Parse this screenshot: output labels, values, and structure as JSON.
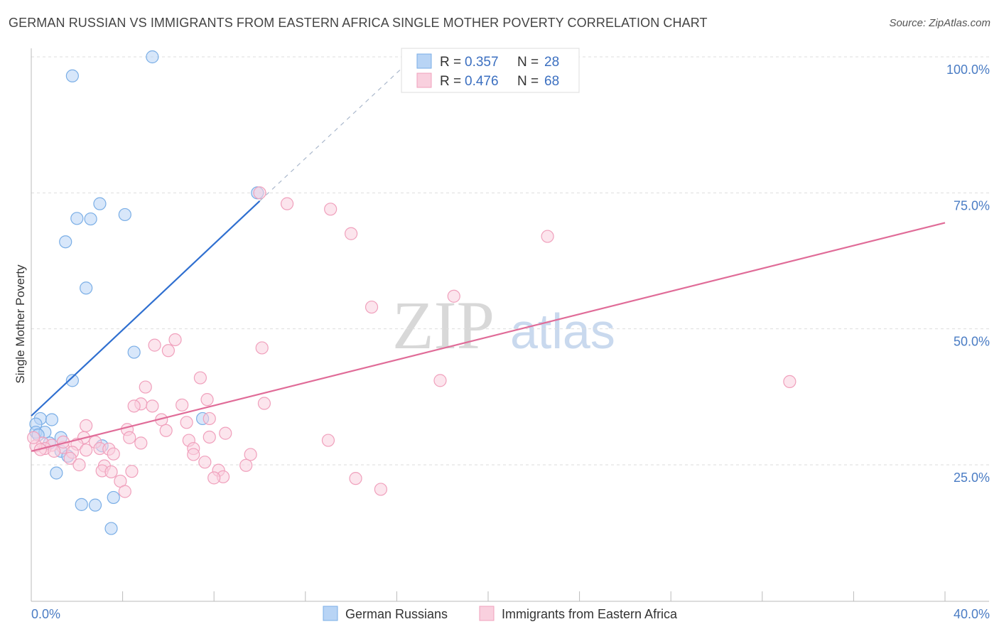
{
  "title": "GERMAN RUSSIAN VS IMMIGRANTS FROM EASTERN AFRICA SINGLE MOTHER POVERTY CORRELATION CHART",
  "source": "Source: ZipAtlas.com",
  "watermark": {
    "zip": "ZIP",
    "atlas": "atlas"
  },
  "chart_data": {
    "type": "scatter",
    "title": "GERMAN RUSSIAN VS IMMIGRANTS FROM EASTERN AFRICA SINGLE MOTHER POVERTY CORRELATION CHART",
    "xlabel": "",
    "ylabel": "Single Mother Poverty",
    "xlim": [
      0,
      40
    ],
    "ylim": [
      3,
      103
    ],
    "x_tick_labels": [
      {
        "value": 0,
        "label": "0.0%"
      },
      {
        "value": 40,
        "label": "40.0%"
      }
    ],
    "y_tick_labels": [
      {
        "value": 25,
        "label": "25.0%"
      },
      {
        "value": 50,
        "label": "50.0%"
      },
      {
        "value": 75,
        "label": "75.0%"
      },
      {
        "value": 100,
        "label": "100.0%"
      }
    ],
    "legend": [
      {
        "series": "German Russians",
        "r_label": "R =",
        "r": "0.357",
        "n_label": "N =",
        "n": "28"
      },
      {
        "series": "Immigrants from Eastern Africa",
        "r_label": "R =",
        "r": "0.476",
        "n_label": "N =",
        "n": "68"
      }
    ],
    "series": [
      {
        "name": "German Russians",
        "color": "#7aaee6",
        "fill": "#b8d4f5",
        "trend_color": "#2f6fd0",
        "trend": {
          "x0": 0,
          "y0": 34,
          "x1": 10,
          "y1": 73.5,
          "dash_to_x": 16.5,
          "dash_to_y": 99
        },
        "points": [
          [
            5.3,
            100
          ],
          [
            1.8,
            96.5
          ],
          [
            3.0,
            73
          ],
          [
            4.1,
            71
          ],
          [
            2.0,
            70.3
          ],
          [
            2.6,
            70.2
          ],
          [
            1.5,
            66
          ],
          [
            2.4,
            57.5
          ],
          [
            9.9,
            75
          ],
          [
            4.5,
            45.7
          ],
          [
            1.8,
            40.5
          ],
          [
            7.5,
            33.5
          ],
          [
            0.4,
            33.5
          ],
          [
            0.9,
            33.3
          ],
          [
            0.2,
            32.5
          ],
          [
            0.2,
            31.0
          ],
          [
            0.6,
            31.0
          ],
          [
            1.3,
            30.0
          ],
          [
            0.3,
            30.5
          ],
          [
            0.8,
            29.0
          ],
          [
            3.1,
            28.5
          ],
          [
            1.3,
            27.5
          ],
          [
            1.6,
            26.6
          ],
          [
            1.1,
            23.5
          ],
          [
            3.6,
            19.0
          ],
          [
            2.2,
            17.7
          ],
          [
            2.8,
            17.6
          ],
          [
            3.5,
            13.3
          ]
        ]
      },
      {
        "name": "Immigrants from Eastern Africa",
        "color": "#f0a0bc",
        "fill": "#f9d0de",
        "trend_color": "#e06c98",
        "trend": {
          "x0": 0,
          "y0": 27.5,
          "x1": 40,
          "y1": 69.5
        },
        "points": [
          [
            10.0,
            75
          ],
          [
            11.2,
            73
          ],
          [
            13.1,
            72
          ],
          [
            14.0,
            67.5
          ],
          [
            22.6,
            67
          ],
          [
            18.5,
            56
          ],
          [
            14.9,
            54
          ],
          [
            6.3,
            48
          ],
          [
            5.4,
            47
          ],
          [
            6.0,
            46
          ],
          [
            10.1,
            46.5
          ],
          [
            7.4,
            41
          ],
          [
            17.9,
            40.5
          ],
          [
            33.2,
            40.3
          ],
          [
            5.0,
            39.3
          ],
          [
            7.7,
            37
          ],
          [
            4.8,
            36.2
          ],
          [
            5.3,
            35.8
          ],
          [
            6.6,
            36
          ],
          [
            10.2,
            36.3
          ],
          [
            4.5,
            35.8
          ],
          [
            5.7,
            33.3
          ],
          [
            7.8,
            33.5
          ],
          [
            6.8,
            32.8
          ],
          [
            2.4,
            32.2
          ],
          [
            5.9,
            31.3
          ],
          [
            4.2,
            31.5
          ],
          [
            8.5,
            30.8
          ],
          [
            4.3,
            30.0
          ],
          [
            7.8,
            30.1
          ],
          [
            2.3,
            30.0
          ],
          [
            13.0,
            29.5
          ],
          [
            2.8,
            29.2
          ],
          [
            4.8,
            29.0
          ],
          [
            2.0,
            28.8
          ],
          [
            6.9,
            29.5
          ],
          [
            0.5,
            29.0
          ],
          [
            0.9,
            28.6
          ],
          [
            1.4,
            28.2
          ],
          [
            0.6,
            28.0
          ],
          [
            3.0,
            28.0
          ],
          [
            2.4,
            27.7
          ],
          [
            3.4,
            27.9
          ],
          [
            1.8,
            27.3
          ],
          [
            7.1,
            28.0
          ],
          [
            1.0,
            27.5
          ],
          [
            0.2,
            28.5
          ],
          [
            7.1,
            26.9
          ],
          [
            3.6,
            27.0
          ],
          [
            1.7,
            26.2
          ],
          [
            9.6,
            26.9
          ],
          [
            2.1,
            25.0
          ],
          [
            3.2,
            24.8
          ],
          [
            7.6,
            25.5
          ],
          [
            9.4,
            24.9
          ],
          [
            3.1,
            23.9
          ],
          [
            8.2,
            24.0
          ],
          [
            3.5,
            23.7
          ],
          [
            4.4,
            23.8
          ],
          [
            8.4,
            22.8
          ],
          [
            8.0,
            22.6
          ],
          [
            14.2,
            22.5
          ],
          [
            3.9,
            22.0
          ],
          [
            4.1,
            20.1
          ],
          [
            15.3,
            20.5
          ],
          [
            0.4,
            27.8
          ],
          [
            1.4,
            29.2
          ],
          [
            0.1,
            30.0
          ]
        ]
      }
    ]
  }
}
